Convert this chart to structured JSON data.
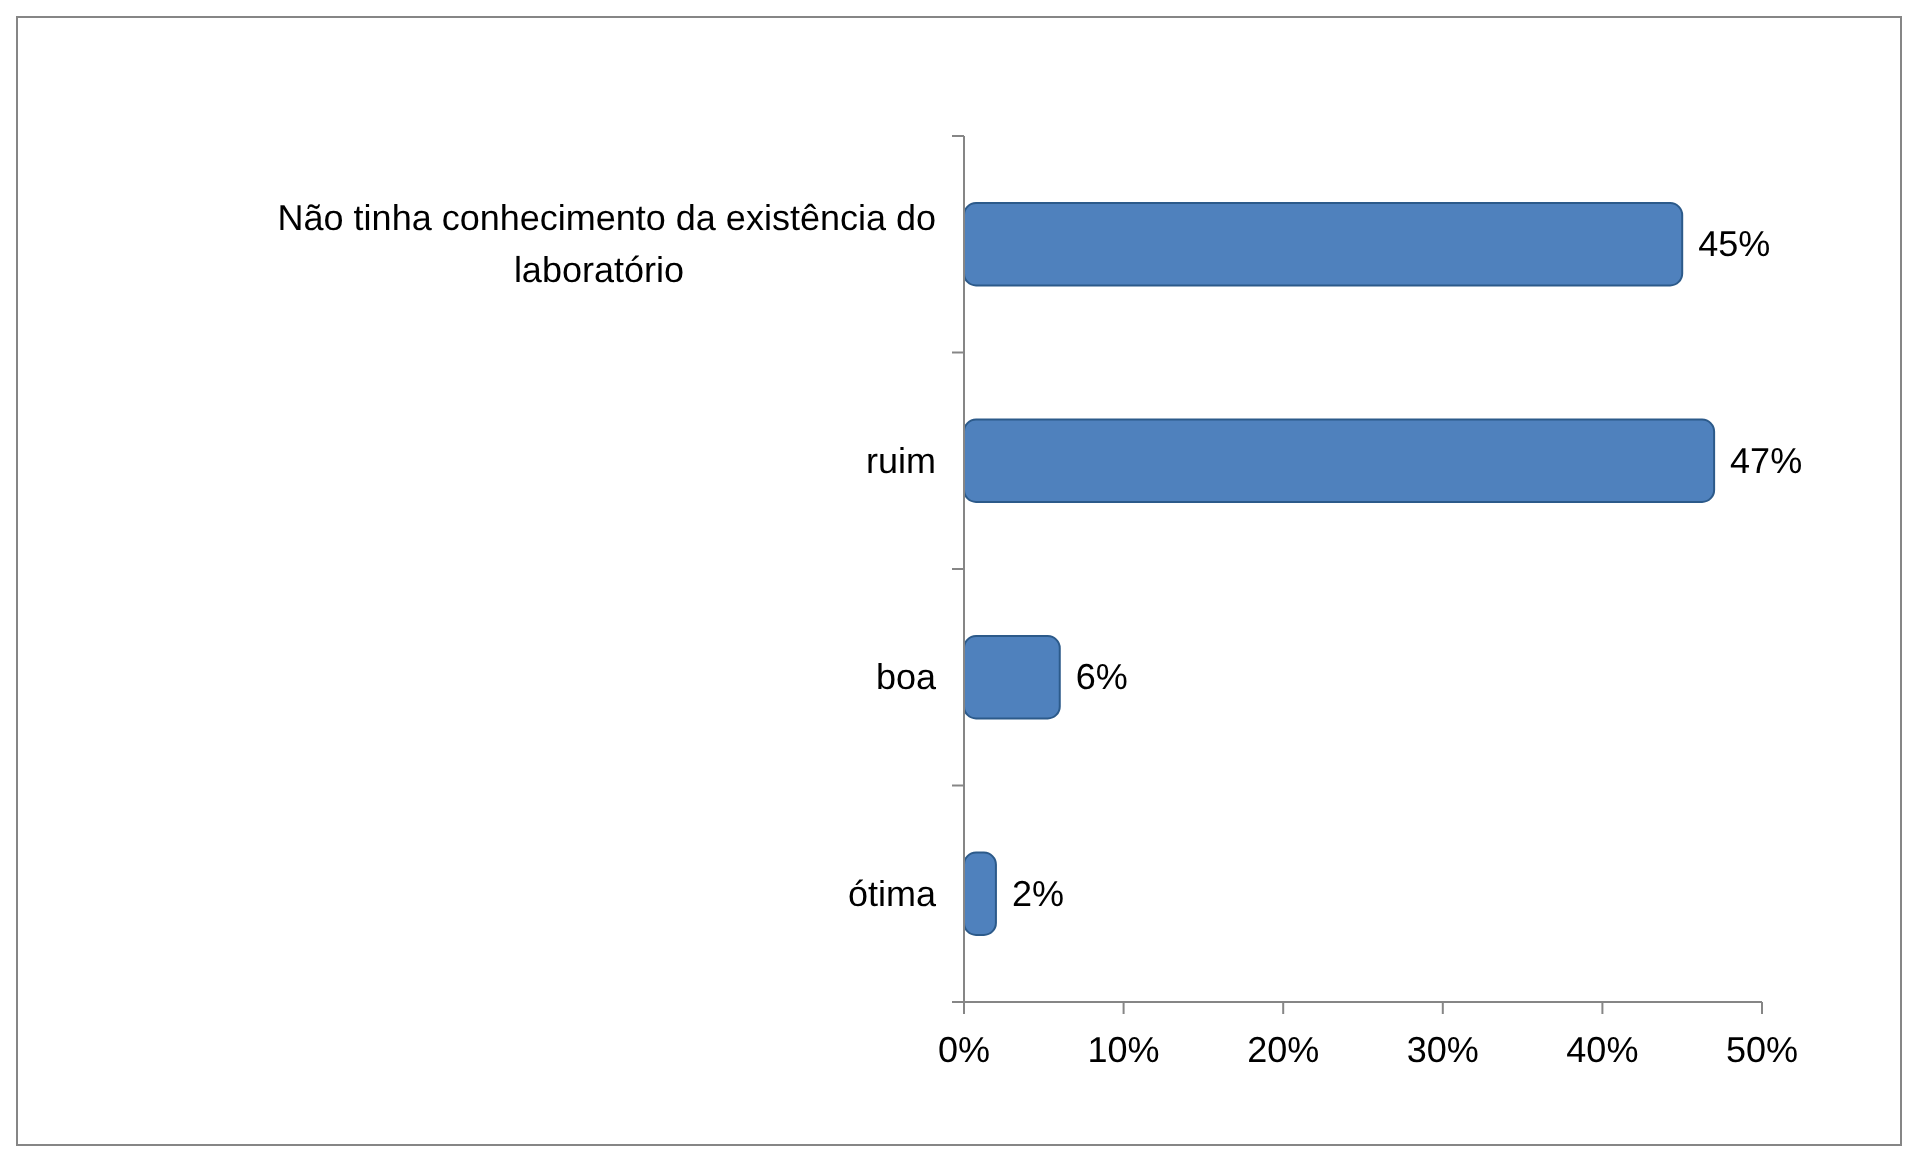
{
  "chart_data": {
    "type": "bar",
    "orientation": "horizontal",
    "categories": [
      "Não tinha conhecimento da existência do laboratório",
      "ruim",
      "boa",
      "ótima"
    ],
    "values": [
      45,
      47,
      6,
      2
    ],
    "value_labels": [
      "45%",
      "47%",
      "6%",
      "2%"
    ],
    "color": "#4f81bd",
    "xlim": [
      0,
      50
    ],
    "xticks": [
      {
        "value": 0,
        "label": "0%"
      },
      {
        "value": 10,
        "label": "10%"
      },
      {
        "value": 20,
        "label": "20%"
      },
      {
        "value": 30,
        "label": "30%"
      },
      {
        "value": 40,
        "label": "40%"
      },
      {
        "value": 50,
        "label": "50%"
      }
    ],
    "grid": false
  }
}
